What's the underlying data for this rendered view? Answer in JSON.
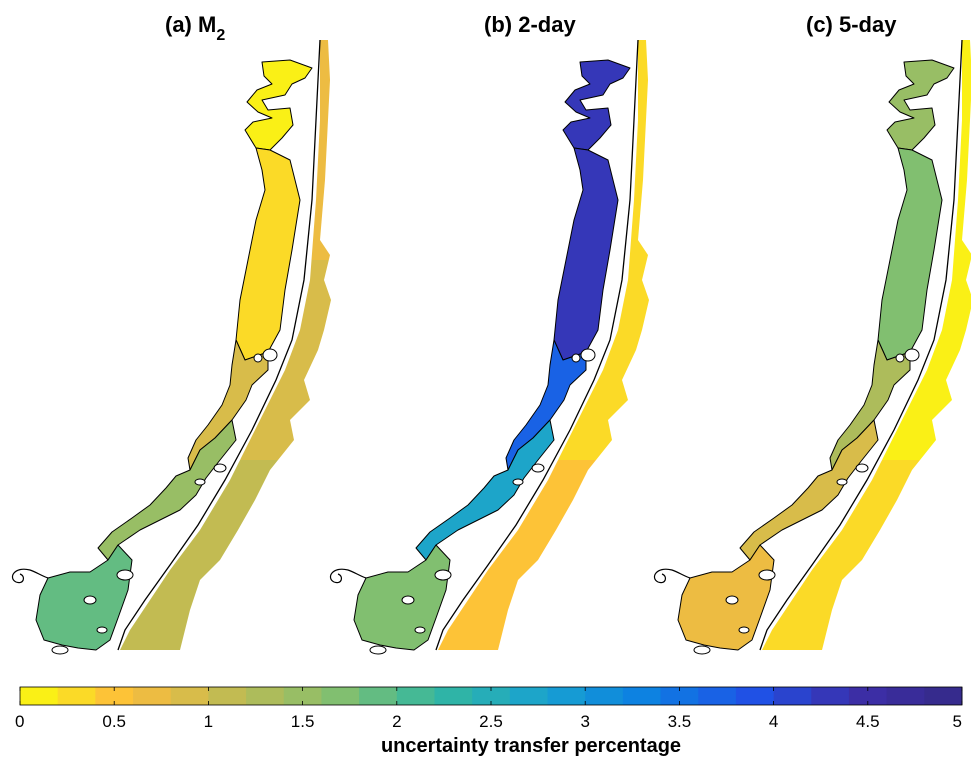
{
  "chart_data": {
    "type": "heatmap",
    "panels": [
      {
        "label": "(a)",
        "title_main": "M",
        "title_sub": "2",
        "regions": {
          "bay_north": 0.1,
          "bay_mid": 0.3,
          "bay_south": 0.9,
          "bay_lower": 1.5,
          "bay_tip": 1.9,
          "ocean_north": 0.6,
          "ocean_mid": 0.85,
          "ocean_south": 1.0
        }
      },
      {
        "label": "(b)",
        "title_main": "2-day",
        "title_sub": "",
        "regions": {
          "bay_north": 4.2,
          "bay_mid": 4.2,
          "bay_south": 3.7,
          "bay_lower": 2.6,
          "bay_tip": 1.6,
          "ocean_north": 0.2,
          "ocean_mid": 0.35,
          "ocean_south": 0.5
        }
      },
      {
        "label": "(c)",
        "title_main": "5-day",
        "title_sub": "",
        "regions": {
          "bay_north": 1.5,
          "bay_mid": 1.6,
          "bay_south": 1.2,
          "bay_lower": 0.8,
          "bay_tip": 0.6,
          "ocean_north": 0.05,
          "ocean_mid": 0.1,
          "ocean_south": 0.2
        }
      }
    ],
    "colorbar": {
      "label": "uncertainty transfer percentage",
      "range": [
        0,
        5
      ],
      "levels": 25,
      "ticks": [
        "0",
        "0.5",
        "1",
        "1.5",
        "2",
        "2.5",
        "3",
        "3.5",
        "4",
        "4.5",
        "5"
      ],
      "colormap": [
        "#f9fb0e",
        "#fdbd3c",
        "#c1bb52",
        "#86bf6d",
        "#33b7a0",
        "#19a2d0",
        "#0c80e2",
        "#1f52e6",
        "#3d2ea8",
        "#352a87"
      ]
    }
  }
}
